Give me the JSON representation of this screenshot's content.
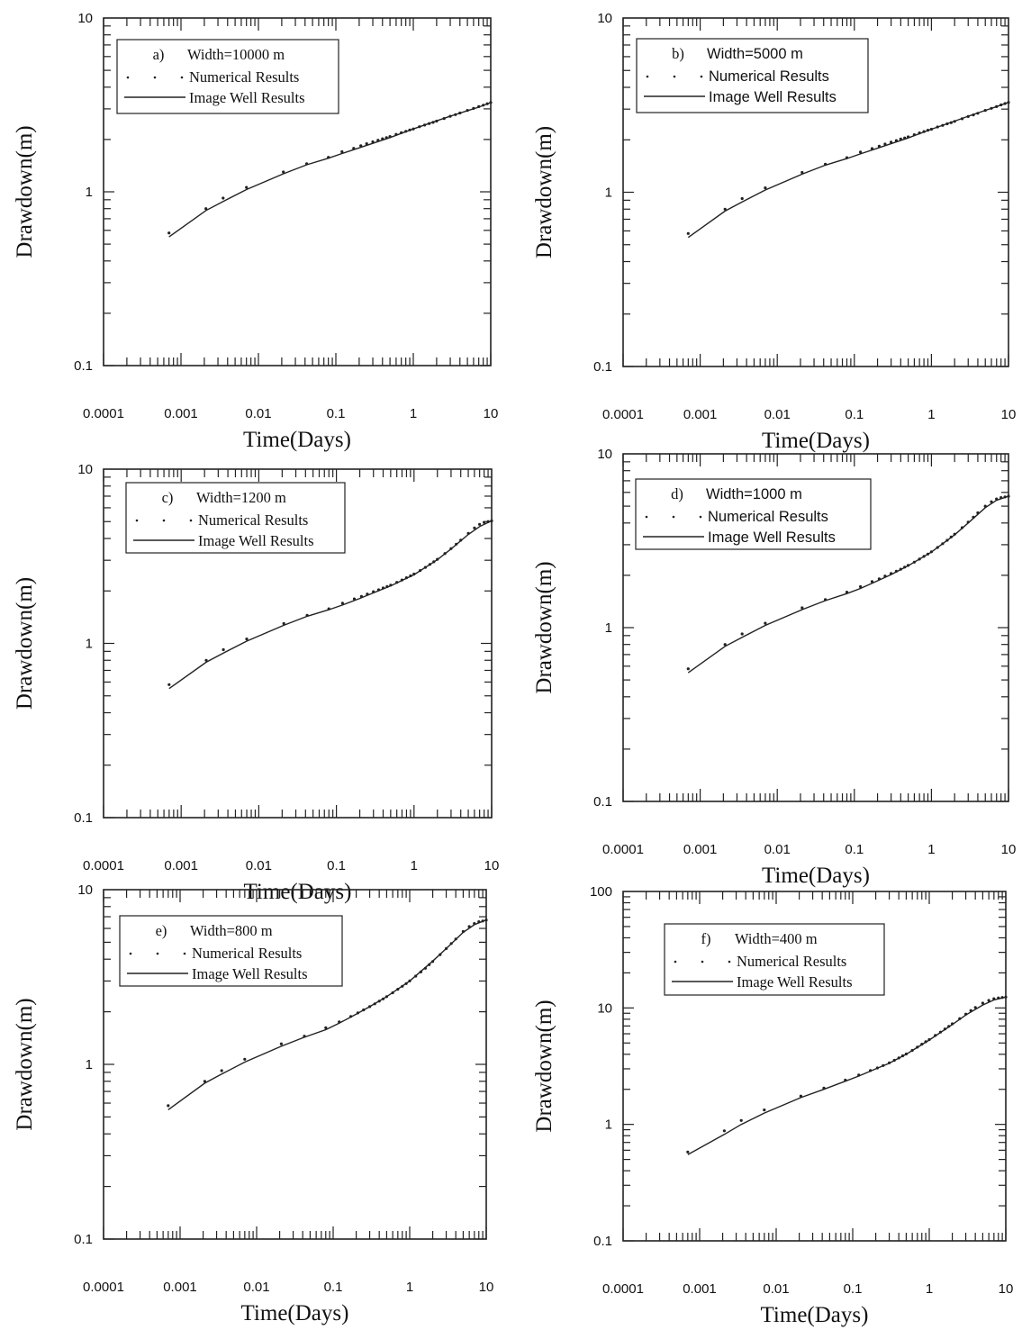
{
  "chart_data": [
    {
      "type": "line",
      "panel_label": "a)",
      "width_label": "Width=10000 m",
      "xlabel": "Time(Days)",
      "ylabel": "Drawdown(m)",
      "xscale": "log",
      "yscale": "log",
      "xlim": [
        0.0001,
        10
      ],
      "ylim": [
        0.1,
        10
      ],
      "x_ticks": [
        "0.0001",
        "0.001",
        "0.01",
        "0.1",
        "1",
        "10"
      ],
      "y_ticks": [
        "0.1",
        "1",
        "10"
      ],
      "legend": {
        "position": "top-left",
        "entries": [
          "Numerical Results",
          "Image Well Results"
        ]
      },
      "series": [
        {
          "name": "Numerical Results",
          "style": "dots",
          "x": [
            0.0007,
            0.0021,
            0.0035,
            0.007,
            0.021,
            0.042,
            0.08,
            0.12,
            0.17,
            0.21,
            0.25,
            0.3,
            0.35,
            0.4,
            0.45,
            0.5,
            0.6,
            0.7,
            0.8,
            0.9,
            1.0,
            1.2,
            1.4,
            1.6,
            1.8,
            2.0,
            2.5,
            3,
            3.5,
            4,
            5,
            6,
            7,
            8,
            9,
            10
          ],
          "y": [
            0.58,
            0.8,
            0.92,
            1.06,
            1.3,
            1.45,
            1.58,
            1.7,
            1.78,
            1.84,
            1.89,
            1.94,
            1.98,
            2.02,
            2.05,
            2.08,
            2.14,
            2.19,
            2.23,
            2.27,
            2.3,
            2.37,
            2.42,
            2.47,
            2.51,
            2.55,
            2.64,
            2.72,
            2.78,
            2.84,
            2.94,
            3.02,
            3.09,
            3.15,
            3.21,
            3.26
          ]
        },
        {
          "name": "Image Well Results",
          "style": "line",
          "x": [
            0.0007,
            0.0021,
            0.0035,
            0.007,
            0.021,
            0.042,
            0.08,
            0.12,
            0.2,
            0.3,
            0.5,
            1,
            2,
            3,
            5,
            7,
            10
          ],
          "y": [
            0.55,
            0.78,
            0.88,
            1.03,
            1.27,
            1.43,
            1.56,
            1.66,
            1.79,
            1.9,
            2.05,
            2.3,
            2.56,
            2.72,
            2.93,
            3.07,
            3.26
          ]
        }
      ]
    },
    {
      "type": "line",
      "panel_label": "b)",
      "width_label": "Width=5000 m",
      "xlabel": "Time(Days)",
      "ylabel": "Drawdown(m)",
      "xscale": "log",
      "yscale": "log",
      "xlim": [
        0.0001,
        10
      ],
      "ylim": [
        0.1,
        10
      ],
      "x_ticks": [
        "0.0001",
        "0.001",
        "0.01",
        "0.1",
        "1",
        "10"
      ],
      "y_ticks": [
        "0.1",
        "1",
        "10"
      ],
      "legend": {
        "position": "top-left",
        "entries": [
          "Numerical Results",
          "Image Well Results"
        ]
      },
      "series": [
        {
          "name": "Numerical Results",
          "style": "dots",
          "x": [
            0.0007,
            0.0021,
            0.0035,
            0.007,
            0.021,
            0.042,
            0.08,
            0.12,
            0.17,
            0.21,
            0.25,
            0.3,
            0.35,
            0.4,
            0.45,
            0.5,
            0.6,
            0.7,
            0.8,
            0.9,
            1.0,
            1.2,
            1.4,
            1.6,
            1.8,
            2.0,
            2.5,
            3,
            3.5,
            4,
            5,
            6,
            7,
            8,
            9,
            10
          ],
          "y": [
            0.58,
            0.8,
            0.92,
            1.06,
            1.3,
            1.45,
            1.58,
            1.7,
            1.78,
            1.84,
            1.89,
            1.94,
            1.98,
            2.02,
            2.05,
            2.08,
            2.14,
            2.19,
            2.23,
            2.27,
            2.3,
            2.37,
            2.42,
            2.47,
            2.51,
            2.55,
            2.64,
            2.72,
            2.78,
            2.84,
            2.95,
            3.03,
            3.1,
            3.17,
            3.23,
            3.28
          ]
        },
        {
          "name": "Image Well Results",
          "style": "line",
          "x": [
            0.0007,
            0.0021,
            0.0035,
            0.007,
            0.021,
            0.042,
            0.08,
            0.12,
            0.2,
            0.3,
            0.5,
            1,
            2,
            3,
            5,
            7,
            10
          ],
          "y": [
            0.55,
            0.78,
            0.88,
            1.03,
            1.27,
            1.43,
            1.56,
            1.66,
            1.79,
            1.9,
            2.05,
            2.3,
            2.56,
            2.73,
            2.95,
            3.1,
            3.28
          ]
        }
      ]
    },
    {
      "type": "line",
      "panel_label": "c)",
      "width_label": "Width=1200 m",
      "xlabel": "Time(Days)",
      "ylabel": "Drawdown(m)",
      "xscale": "log",
      "yscale": "log",
      "xlim": [
        0.0001,
        10
      ],
      "ylim": [
        0.1,
        10
      ],
      "x_ticks": [
        "0.0001",
        "0.001",
        "0.01",
        "0.1",
        "1",
        "10"
      ],
      "y_ticks": [
        "0.1",
        "1",
        "10"
      ],
      "legend": {
        "position": "top-left",
        "entries": [
          "Numerical Results",
          "Image Well Results"
        ]
      },
      "series": [
        {
          "name": "Numerical Results",
          "style": "dots",
          "x": [
            0.0007,
            0.0021,
            0.0035,
            0.007,
            0.021,
            0.042,
            0.08,
            0.12,
            0.17,
            0.21,
            0.25,
            0.3,
            0.35,
            0.4,
            0.45,
            0.5,
            0.6,
            0.7,
            0.8,
            0.9,
            1.0,
            1.2,
            1.4,
            1.6,
            1.8,
            2.0,
            2.5,
            3,
            3.5,
            4,
            5,
            6,
            7,
            8,
            9,
            10
          ],
          "y": [
            0.58,
            0.8,
            0.92,
            1.06,
            1.3,
            1.45,
            1.58,
            1.7,
            1.8,
            1.86,
            1.92,
            1.98,
            2.03,
            2.08,
            2.12,
            2.16,
            2.24,
            2.31,
            2.38,
            2.44,
            2.5,
            2.62,
            2.73,
            2.84,
            2.94,
            3.04,
            3.28,
            3.5,
            3.71,
            3.91,
            4.28,
            4.6,
            4.82,
            4.95,
            5.0,
            5.05
          ]
        },
        {
          "name": "Image Well Results",
          "style": "line",
          "x": [
            0.0007,
            0.0021,
            0.0035,
            0.007,
            0.021,
            0.042,
            0.08,
            0.12,
            0.2,
            0.3,
            0.5,
            1,
            2,
            3,
            5,
            7,
            10
          ],
          "y": [
            0.55,
            0.78,
            0.88,
            1.03,
            1.27,
            1.43,
            1.56,
            1.66,
            1.81,
            1.95,
            2.14,
            2.48,
            3.02,
            3.48,
            4.22,
            4.68,
            5.05
          ]
        }
      ]
    },
    {
      "type": "line",
      "panel_label": "d)",
      "width_label": "Width=1000 m",
      "xlabel": "Time(Days)",
      "ylabel": "Drawdown(m)",
      "xscale": "log",
      "yscale": "log",
      "xlim": [
        0.0001,
        10
      ],
      "ylim": [
        0.1,
        10
      ],
      "x_ticks": [
        "0.0001",
        "0.001",
        "0.01",
        "0.1",
        "1",
        "10"
      ],
      "y_ticks": [
        "0.1",
        "1",
        "10"
      ],
      "legend": {
        "position": "top-left",
        "entries": [
          "Numerical Results",
          "Image Well Results"
        ]
      },
      "series": [
        {
          "name": "Numerical Results",
          "style": "dots",
          "x": [
            0.0007,
            0.0021,
            0.0035,
            0.007,
            0.021,
            0.042,
            0.08,
            0.12,
            0.17,
            0.21,
            0.25,
            0.3,
            0.35,
            0.4,
            0.45,
            0.5,
            0.6,
            0.7,
            0.8,
            0.9,
            1.0,
            1.2,
            1.4,
            1.6,
            1.8,
            2.0,
            2.5,
            3,
            3.5,
            4,
            5,
            6,
            7,
            8,
            9,
            10
          ],
          "y": [
            0.58,
            0.8,
            0.92,
            1.06,
            1.3,
            1.45,
            1.6,
            1.72,
            1.84,
            1.91,
            1.98,
            2.05,
            2.11,
            2.17,
            2.23,
            2.28,
            2.38,
            2.48,
            2.57,
            2.65,
            2.73,
            2.89,
            3.04,
            3.18,
            3.32,
            3.45,
            3.76,
            4.05,
            4.32,
            4.58,
            5.0,
            5.3,
            5.5,
            5.6,
            5.65,
            5.7
          ]
        },
        {
          "name": "Image Well Results",
          "style": "line",
          "x": [
            0.0007,
            0.0021,
            0.0035,
            0.007,
            0.021,
            0.042,
            0.08,
            0.12,
            0.2,
            0.3,
            0.5,
            1,
            2,
            3,
            5,
            7,
            10
          ],
          "y": [
            0.55,
            0.78,
            0.88,
            1.03,
            1.27,
            1.43,
            1.57,
            1.68,
            1.86,
            2.02,
            2.27,
            2.72,
            3.42,
            4.0,
            4.9,
            5.4,
            5.7
          ]
        }
      ]
    },
    {
      "type": "line",
      "panel_label": "e)",
      "width_label": "Width=800 m",
      "xlabel": "Time(Days)",
      "ylabel": "Drawdown(m)",
      "xscale": "log",
      "yscale": "log",
      "xlim": [
        0.0001,
        10
      ],
      "ylim": [
        0.1,
        10
      ],
      "x_ticks": [
        "0.0001",
        "0.001",
        "0.01",
        "0.1",
        "1",
        "10"
      ],
      "y_ticks": [
        "0.1",
        "1",
        "10"
      ],
      "legend": {
        "position": "top-left",
        "entries": [
          "Numerical Results",
          "Image Well Results"
        ]
      },
      "series": [
        {
          "name": "Numerical Results",
          "style": "dots",
          "x": [
            0.0007,
            0.0021,
            0.0035,
            0.007,
            0.021,
            0.042,
            0.08,
            0.12,
            0.17,
            0.21,
            0.25,
            0.3,
            0.35,
            0.4,
            0.45,
            0.5,
            0.6,
            0.7,
            0.8,
            0.9,
            1.0,
            1.2,
            1.4,
            1.6,
            1.8,
            2.0,
            2.5,
            3,
            3.5,
            4,
            5,
            6,
            7,
            8,
            9,
            10
          ],
          "y": [
            0.58,
            0.8,
            0.92,
            1.07,
            1.31,
            1.45,
            1.62,
            1.75,
            1.88,
            1.97,
            2.05,
            2.14,
            2.22,
            2.3,
            2.37,
            2.44,
            2.57,
            2.69,
            2.8,
            2.9,
            3.0,
            3.2,
            3.38,
            3.55,
            3.72,
            3.88,
            4.25,
            4.6,
            4.92,
            5.22,
            5.76,
            6.15,
            6.4,
            6.55,
            6.62,
            6.7
          ]
        },
        {
          "name": "Image Well Results",
          "style": "line",
          "x": [
            0.0007,
            0.0021,
            0.0035,
            0.007,
            0.021,
            0.042,
            0.08,
            0.12,
            0.2,
            0.3,
            0.5,
            1,
            2,
            3,
            5,
            7,
            10
          ],
          "y": [
            0.55,
            0.78,
            0.88,
            1.03,
            1.27,
            1.43,
            1.58,
            1.72,
            1.94,
            2.14,
            2.44,
            3.0,
            3.9,
            4.6,
            5.7,
            6.3,
            6.7
          ]
        }
      ]
    },
    {
      "type": "line",
      "panel_label": "f)",
      "width_label": "Width=400 m",
      "xlabel": "Time(Days)",
      "ylabel": "Drawdown(m)",
      "xscale": "log",
      "yscale": "log",
      "xlim": [
        0.0001,
        10
      ],
      "ylim": [
        0.1,
        100
      ],
      "x_ticks": [
        "0.0001",
        "0.001",
        "0.01",
        "0.1",
        "1",
        "10"
      ],
      "y_ticks": [
        "0.1",
        "1",
        "10",
        "100"
      ],
      "legend": {
        "position": "top-left",
        "entries": [
          "Numerical Results",
          "Image Well Results"
        ]
      },
      "series": [
        {
          "name": "Numerical Results",
          "style": "dots",
          "x": [
            0.0007,
            0.0021,
            0.0035,
            0.007,
            0.021,
            0.042,
            0.08,
            0.12,
            0.17,
            0.21,
            0.25,
            0.3,
            0.35,
            0.4,
            0.45,
            0.5,
            0.6,
            0.7,
            0.8,
            0.9,
            1.0,
            1.2,
            1.4,
            1.6,
            1.8,
            2.0,
            2.5,
            3,
            3.5,
            4,
            5,
            6,
            7,
            8,
            9,
            10
          ],
          "y": [
            0.58,
            0.88,
            1.08,
            1.33,
            1.75,
            2.05,
            2.4,
            2.65,
            2.9,
            3.05,
            3.2,
            3.38,
            3.55,
            3.72,
            3.88,
            4.02,
            4.32,
            4.6,
            4.88,
            5.12,
            5.35,
            5.8,
            6.2,
            6.6,
            6.95,
            7.3,
            8.1,
            8.85,
            9.5,
            10.1,
            11.0,
            11.6,
            12.0,
            12.2,
            12.3,
            12.4
          ]
        },
        {
          "name": "Image Well Results",
          "style": "line",
          "x": [
            0.0007,
            0.0021,
            0.0035,
            0.007,
            0.021,
            0.042,
            0.08,
            0.12,
            0.2,
            0.3,
            0.5,
            1,
            2,
            3,
            5,
            7,
            10
          ],
          "y": [
            0.55,
            0.82,
            1.0,
            1.25,
            1.7,
            2.0,
            2.35,
            2.6,
            3.0,
            3.35,
            4.0,
            5.3,
            7.2,
            8.7,
            10.6,
            11.7,
            12.4
          ]
        }
      ]
    }
  ]
}
